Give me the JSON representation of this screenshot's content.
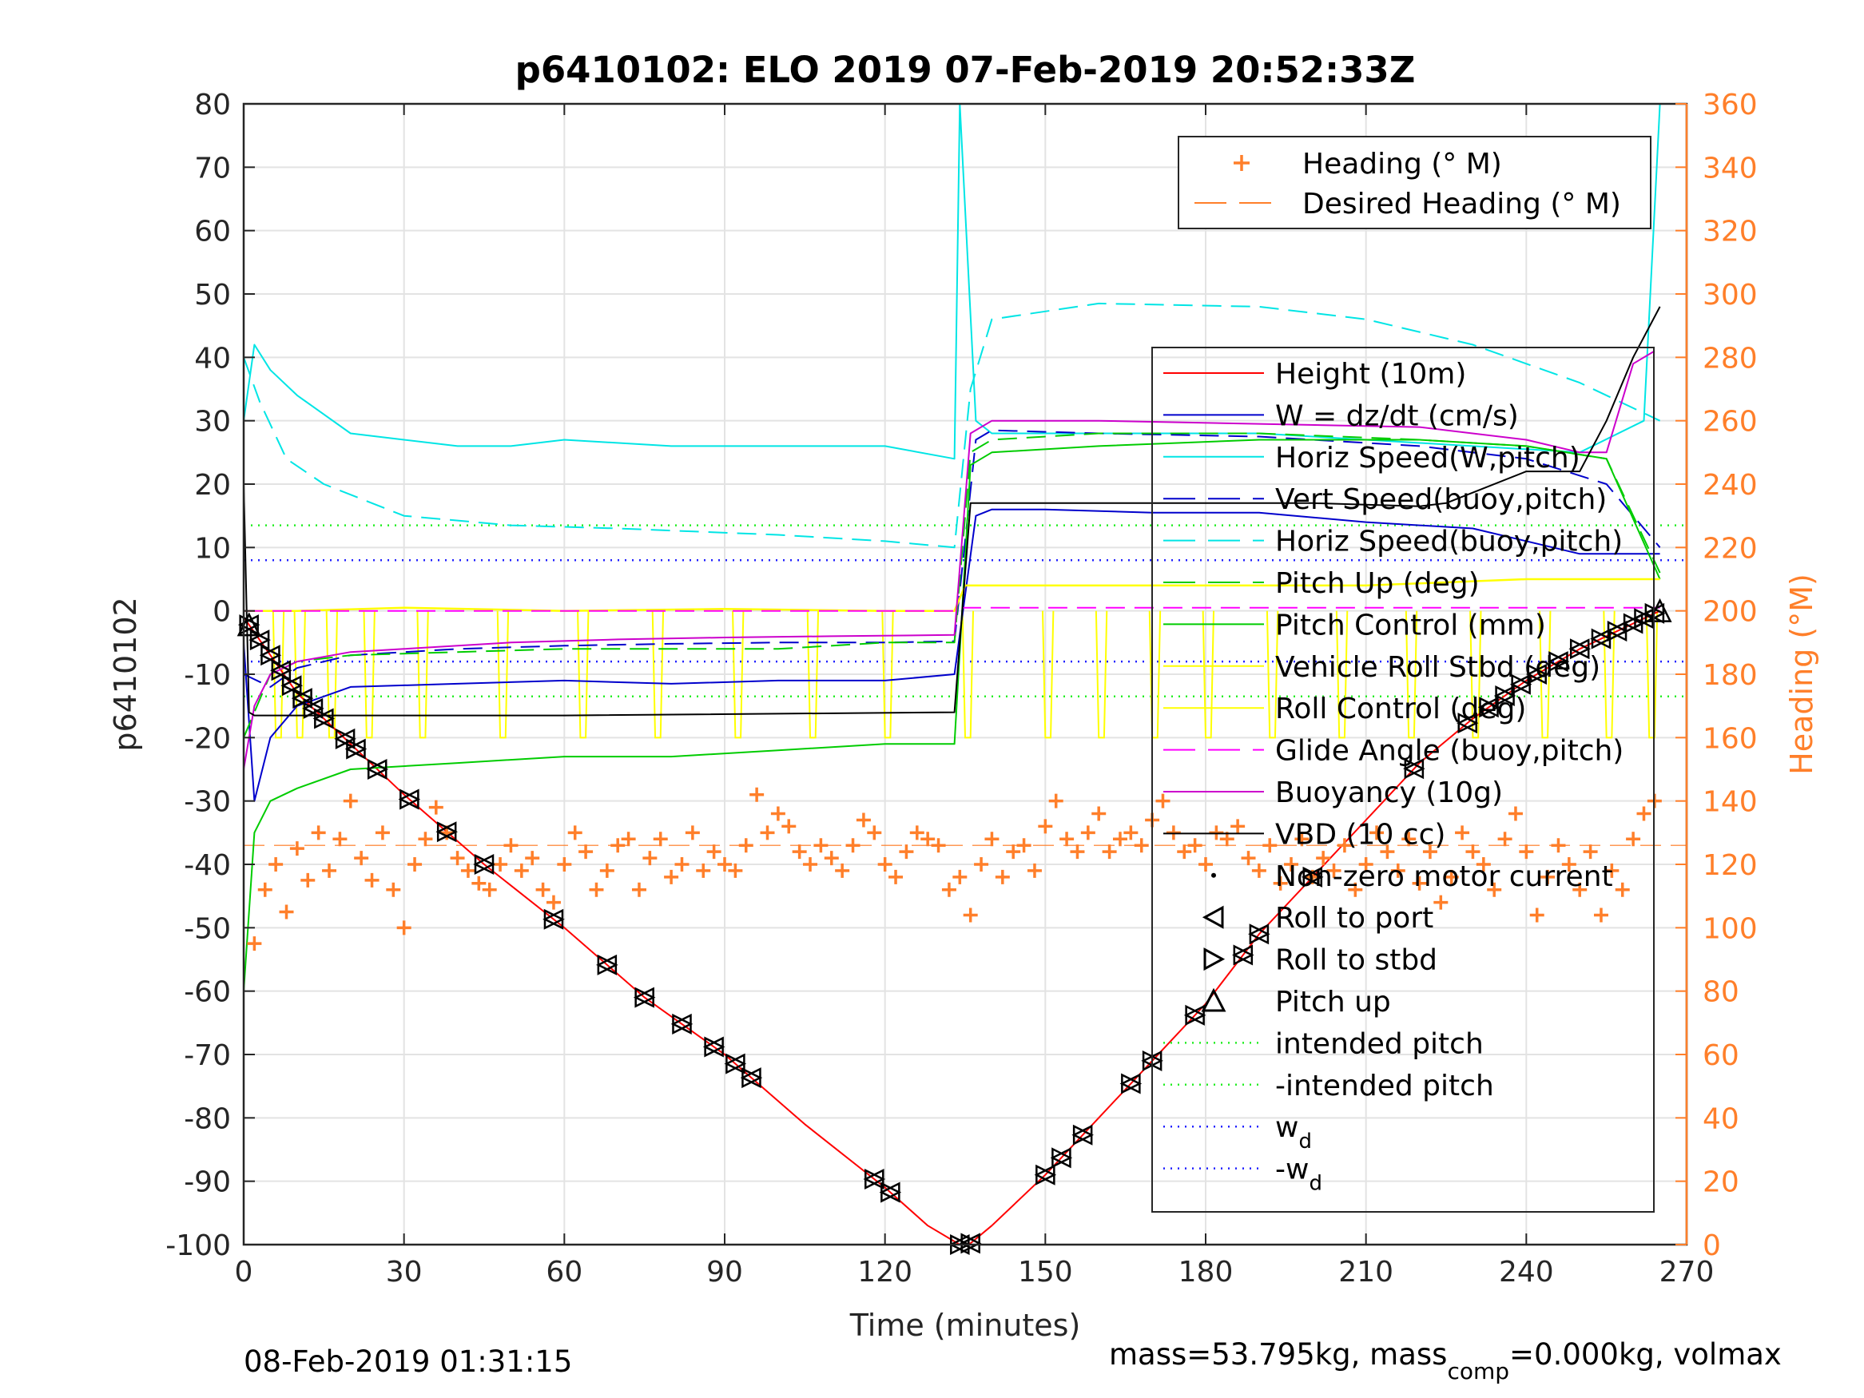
{
  "chart_data": {
    "type": "line",
    "title": "p6410102: ELO 2019 07-Feb-2019 20:52:33Z",
    "xlabel": "Time (minutes)",
    "ylabel": "p6410102",
    "y2label": "Heading (°M)",
    "xlim": [
      0,
      270
    ],
    "ylim": [
      -100,
      80
    ],
    "y2lim": [
      0,
      360
    ],
    "xticks": [
      "0",
      "30",
      "60",
      "90",
      "120",
      "150",
      "180",
      "210",
      "240",
      "270"
    ],
    "yticks": [
      "80",
      "70",
      "60",
      "50",
      "40",
      "30",
      "20",
      "10",
      "0",
      "-10",
      "-20",
      "-30",
      "-40",
      "-50",
      "-60",
      "-70",
      "-80",
      "-90",
      "-100"
    ],
    "y2ticks": [
      "360",
      "340",
      "320",
      "300",
      "280",
      "260",
      "240",
      "220",
      "200",
      "180",
      "160",
      "140",
      "120",
      "100",
      "80",
      "60",
      "40",
      "20",
      "0"
    ],
    "grid": true,
    "legend_top": {
      "placement": "top-right",
      "entries": [
        {
          "label": "Heading (° M)",
          "color": "#ff7f2a"
        },
        {
          "label": "Desired Heading (° M)",
          "color": "#ff7f2a"
        }
      ]
    },
    "legend_main": {
      "placement": "right",
      "entries": [
        {
          "label": "Height (10m)",
          "color": "#ff0000"
        },
        {
          "label": "W = dz/dt (cm/s)",
          "color": "#0000cc"
        },
        {
          "label": "Horiz Speed(W,pitch)",
          "color": "#00e5e5"
        },
        {
          "label": "Vert Speed(buoy,pitch)",
          "color": "#0000cc"
        },
        {
          "label": "Horiz Speed(buoy,pitch)",
          "color": "#00e5e5"
        },
        {
          "label": "Pitch Up (deg)",
          "color": "#00cc00"
        },
        {
          "label": "Pitch Control (mm)",
          "color": "#00cc00"
        },
        {
          "label": "Vehicle Roll Stbd (deg)",
          "color": "#ffff00"
        },
        {
          "label": "Roll Control (deg)",
          "color": "#ffff00"
        },
        {
          "label": "Glide Angle (buoy,pitch)",
          "color": "#ff00ff"
        },
        {
          "label": "Buoyancy (10g)",
          "color": "#cc00cc"
        },
        {
          "label": "VBD (10 cc)",
          "color": "#000000"
        },
        {
          "label": "Non-zero motor current",
          "color": "#000000"
        },
        {
          "label": "Roll to port",
          "color": "#000000"
        },
        {
          "label": "Roll to stbd",
          "color": "#000000"
        },
        {
          "label": "Pitch up",
          "color": "#000000"
        },
        {
          "label": "intended pitch",
          "color": "#22ee22"
        },
        {
          "label": "-intended pitch",
          "color": "#22ee22"
        },
        {
          "label": "w",
          "sub": "d",
          "color": "#2020ff"
        },
        {
          "label": "-w",
          "sub": "d",
          "color": "#2020ff"
        }
      ]
    },
    "ref_lines": {
      "intended_pitch": 13.5,
      "w_d": 8,
      "desired_heading": 126
    },
    "series": [
      {
        "name": "Height (10m)",
        "x": [
          0,
          5,
          10,
          20,
          30,
          45,
          60,
          75,
          90,
          105,
          120,
          128,
          134,
          136,
          140,
          150,
          160,
          170,
          180,
          190,
          200,
          210,
          220,
          230,
          240,
          250,
          260,
          265
        ],
        "values": [
          -1,
          -7,
          -13,
          -21,
          -29,
          -40,
          -50,
          -61,
          -70,
          -81,
          -91,
          -97,
          -100,
          -99.8,
          -97,
          -89,
          -80,
          -71,
          -62,
          -51,
          -42,
          -33,
          -24,
          -17,
          -11,
          -6,
          -2,
          0
        ]
      },
      {
        "name": "W = dz/dt (cm/s)",
        "x": [
          0,
          2,
          5,
          10,
          20,
          40,
          60,
          80,
          100,
          120,
          133,
          137,
          140,
          150,
          170,
          190,
          210,
          230,
          250,
          265
        ],
        "values": [
          -5,
          -30,
          -20,
          -15,
          -12,
          -11.5,
          -11,
          -11.5,
          -11,
          -11,
          -10,
          15,
          16,
          16,
          15.5,
          15.5,
          14,
          13,
          9,
          9
        ]
      },
      {
        "name": "Horiz Speed(W,pitch)",
        "x": [
          0,
          2,
          5,
          10,
          20,
          30,
          40,
          50,
          60,
          80,
          100,
          120,
          133,
          134,
          137,
          140,
          150,
          170,
          190,
          210,
          230,
          250,
          262,
          265
        ],
        "values": [
          30,
          42,
          38,
          34,
          28,
          27,
          26,
          26,
          27,
          26,
          26,
          26,
          24,
          80,
          30,
          28,
          28,
          28,
          28,
          27,
          26,
          25,
          30,
          80
        ]
      },
      {
        "name": "Vert Speed(buoy,pitch)",
        "x": [
          0,
          5,
          10,
          20,
          40,
          60,
          80,
          100,
          120,
          133,
          137,
          140,
          160,
          190,
          220,
          240,
          255,
          265
        ],
        "values": [
          -10,
          -12,
          -9,
          -7,
          -6,
          -5.5,
          -5.2,
          -5,
          -5,
          -4.8,
          27,
          28.5,
          28,
          27.5,
          26,
          24,
          20,
          10
        ]
      },
      {
        "name": "Horiz Speed(buoy,pitch)",
        "x": [
          0,
          3,
          8,
          15,
          30,
          50,
          70,
          100,
          120,
          133,
          136,
          140,
          160,
          190,
          210,
          230,
          250,
          265
        ],
        "values": [
          40,
          33,
          24,
          20,
          15,
          13.5,
          13,
          12,
          11,
          10,
          35,
          46,
          48.5,
          48,
          46,
          42,
          36,
          30
        ]
      },
      {
        "name": "Pitch Up (deg)",
        "x": [
          0,
          5,
          10,
          20,
          40,
          60,
          80,
          100,
          120,
          133,
          136,
          140,
          160,
          190,
          220,
          240,
          255,
          265
        ],
        "values": [
          -20,
          -10,
          -8,
          -7,
          -6.5,
          -6,
          -6,
          -6,
          -5,
          -5,
          25,
          27,
          28,
          28,
          27,
          26,
          24,
          6
        ]
      },
      {
        "name": "Pitch Control (mm)",
        "x": [
          0,
          2,
          5,
          10,
          20,
          40,
          60,
          80,
          100,
          120,
          133,
          136,
          140,
          160,
          190,
          220,
          240,
          255,
          265
        ],
        "values": [
          -60,
          -35,
          -30,
          -28,
          -25,
          -24,
          -23,
          -23,
          -22,
          -21,
          -21,
          23,
          25,
          26,
          27,
          27,
          26,
          24,
          5
        ]
      },
      {
        "name": "Vehicle Roll Stbd (deg)",
        "x": [
          0,
          10,
          30,
          60,
          90,
          120,
          133,
          135,
          150,
          180,
          210,
          240,
          265
        ],
        "values": [
          0,
          0,
          0.5,
          0,
          0.3,
          0,
          0,
          4,
          4,
          4,
          4,
          5,
          5
        ]
      },
      {
        "name": "Glide Angle (buoy,pitch)",
        "x": [
          0,
          133,
          134,
          265
        ],
        "values": [
          0,
          0,
          0.5,
          0.5
        ]
      },
      {
        "name": "Buoyancy (10g)",
        "x": [
          0,
          2,
          5,
          10,
          20,
          30,
          50,
          70,
          90,
          110,
          133,
          136,
          140,
          160,
          190,
          220,
          240,
          250,
          255,
          260,
          264
        ],
        "values": [
          -25,
          -15,
          -10,
          -8,
          -6.5,
          -6,
          -5,
          -4.5,
          -4.2,
          -4,
          -3.8,
          28,
          30,
          30,
          29.5,
          29,
          27,
          25,
          25,
          39,
          41
        ]
      },
      {
        "name": "VBD (10 cc)",
        "x": [
          0,
          1,
          2,
          10,
          60,
          133,
          136,
          140,
          200,
          220,
          225,
          240,
          250,
          255,
          260,
          265
        ],
        "values": [
          20,
          -16,
          -16.5,
          -16.5,
          -16.5,
          -16,
          17,
          17,
          17,
          16.5,
          17,
          22,
          22,
          30,
          40,
          48
        ]
      }
    ],
    "heading": {
      "name": "Heading (° M)",
      "x": [
        2,
        4,
        6,
        8,
        10,
        12,
        14,
        16,
        18,
        20,
        22,
        24,
        26,
        28,
        30,
        32,
        34,
        36,
        38,
        40,
        42,
        44,
        46,
        48,
        50,
        52,
        54,
        56,
        58,
        60,
        62,
        64,
        66,
        68,
        70,
        72,
        74,
        76,
        78,
        80,
        82,
        84,
        86,
        88,
        90,
        92,
        94,
        96,
        98,
        100,
        102,
        104,
        106,
        108,
        110,
        112,
        114,
        116,
        118,
        120,
        122,
        124,
        126,
        128,
        130,
        132,
        134,
        136,
        138,
        140,
        142,
        144,
        146,
        148,
        150,
        152,
        154,
        156,
        158,
        160,
        162,
        164,
        166,
        168,
        170,
        172,
        174,
        176,
        178,
        180,
        182,
        184,
        186,
        188,
        190,
        192,
        194,
        196,
        198,
        200,
        202,
        204,
        206,
        208,
        210,
        212,
        214,
        216,
        218,
        220,
        222,
        224,
        226,
        228,
        230,
        232,
        234,
        236,
        238,
        240,
        242,
        244,
        246,
        248,
        250,
        252,
        254,
        256,
        258,
        260,
        262,
        264
      ],
      "values": [
        95,
        112,
        120,
        105,
        125,
        115,
        130,
        118,
        128,
        140,
        122,
        115,
        130,
        112,
        100,
        120,
        128,
        138,
        130,
        122,
        118,
        114,
        112,
        120,
        126,
        118,
        122,
        112,
        108,
        120,
        130,
        124,
        112,
        118,
        126,
        128,
        112,
        122,
        128,
        116,
        120,
        130,
        118,
        124,
        120,
        118,
        126,
        142,
        130,
        136,
        132,
        124,
        120,
        126,
        122,
        118,
        126,
        134,
        130,
        120,
        116,
        124,
        130,
        128,
        126,
        112,
        116,
        104,
        120,
        128,
        116,
        124,
        126,
        118,
        132,
        140,
        128,
        124,
        130,
        136,
        124,
        128,
        130,
        126,
        134,
        140,
        130,
        124,
        126,
        120,
        130,
        128,
        132,
        122,
        118,
        126,
        114,
        120,
        128,
        116,
        122,
        118,
        126,
        112,
        120,
        130,
        124,
        118,
        128,
        114,
        124,
        108,
        116,
        130,
        124,
        120,
        112,
        128,
        136,
        124,
        104,
        116,
        126,
        120,
        112,
        124,
        104,
        118,
        112,
        128,
        136,
        140
      ]
    }
  },
  "footer": {
    "date": "08-Feb-2019 01:31:15",
    "mass_prefix": "mass=53.795kg, mass",
    "mass_sub": "comp",
    "mass_suffix": "=0.000kg, volmax"
  }
}
